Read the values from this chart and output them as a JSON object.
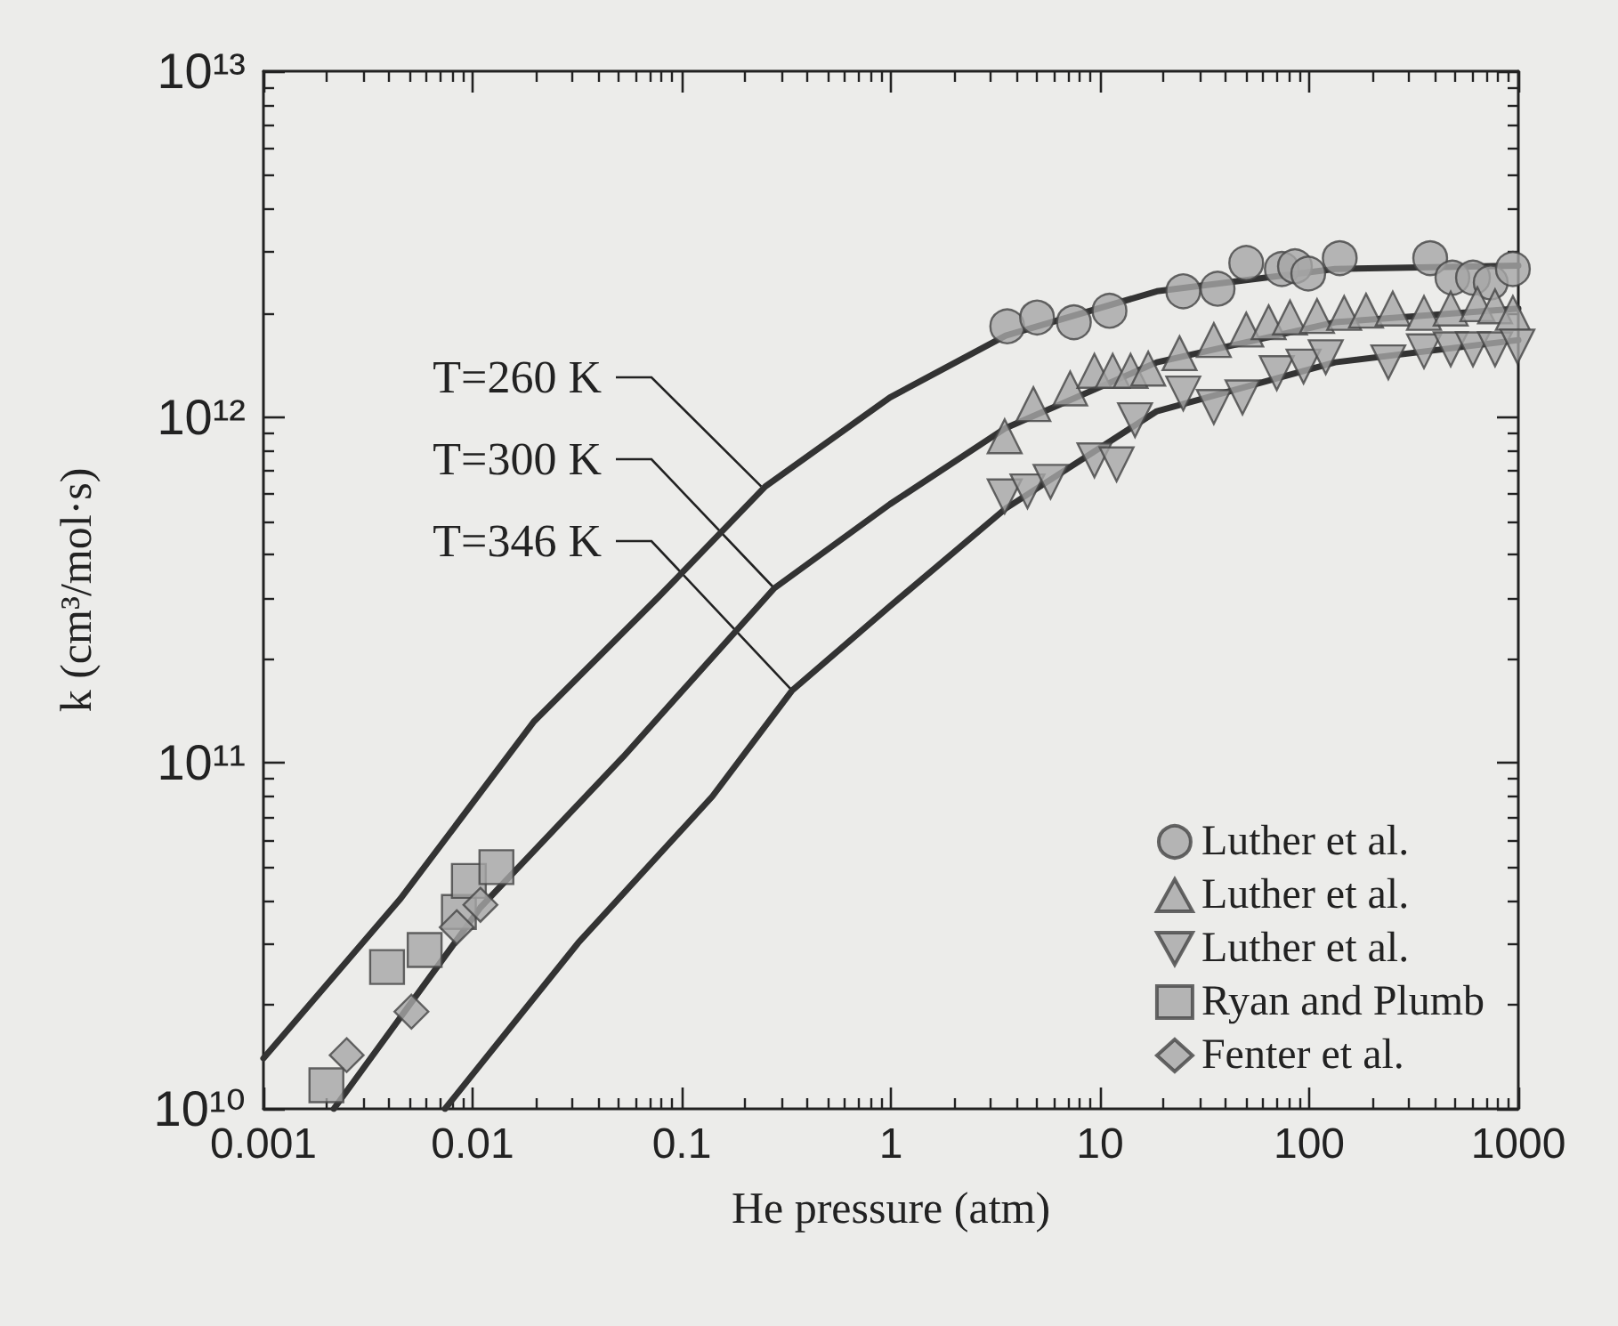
{
  "chart_data": {
    "type": "scatter",
    "xlabel": "He pressure (atm)",
    "ylabel": "k (cm³/mol·s)",
    "log": "xy",
    "xlim": [
      0.001,
      1000
    ],
    "xticks": [
      0.001,
      0.01,
      0.1,
      1,
      10,
      100,
      1000
    ],
    "ylim": [
      10000000000.0,
      10000000000000.0
    ],
    "yticks": [
      {
        "value": 10000000000.0,
        "label": "10¹⁰"
      },
      {
        "value": 100000000000.0,
        "label": "10¹¹"
      },
      {
        "value": 1000000000000.0,
        "label": "10¹²"
      },
      {
        "value": 10000000000000.0,
        "label": "10¹³"
      }
    ],
    "legend": "bottom right",
    "grid": false,
    "series": [
      {
        "name": "Luther et al.",
        "marker": "circle",
        "color": "#a6a6a6",
        "x": [
          3.6,
          5.0,
          7.5,
          11.1,
          25,
          36.5,
          50,
          74,
          85.5,
          99,
          140,
          379,
          484,
          607,
          738,
          942
        ],
        "values": [
          1830000000000.0,
          1940000000000.0,
          1880000000000.0,
          2030000000000.0,
          2310000000000.0,
          2350000000000.0,
          2790000000000.0,
          2680000000000.0,
          2730000000000.0,
          2600000000000.0,
          2880000000000.0,
          2880000000000.0,
          2530000000000.0,
          2530000000000.0,
          2450000000000.0,
          2680000000000.0
        ]
      },
      {
        "name": "Luther et al.",
        "marker": "triangle",
        "color": "#a6a6a6",
        "x": [
          3.5,
          4.8,
          7.2,
          9.4,
          11.5,
          14,
          17,
          24,
          35,
          50,
          64,
          81,
          109,
          147,
          187,
          251,
          354,
          475,
          637,
          774,
          942
        ],
        "values": [
          880000000000.0,
          1090000000000.0,
          1210000000000.0,
          1360000000000.0,
          1360000000000.0,
          1360000000000.0,
          1380000000000.0,
          1530000000000.0,
          1670000000000.0,
          1790000000000.0,
          1880000000000.0,
          1940000000000.0,
          1960000000000.0,
          2000000000000.0,
          2030000000000.0,
          2060000000000.0,
          2000000000000.0,
          2060000000000.0,
          2120000000000.0,
          2090000000000.0,
          2000000000000.0
        ]
      },
      {
        "name": "Luther et al.",
        "marker": "triangle-down",
        "color": "#a6a6a6",
        "x": [
          3.5,
          4.5,
          5.8,
          9.4,
          12,
          14.7,
          25,
          35,
          48,
          70,
          94,
          120,
          239,
          354,
          475,
          607,
          774,
          990
        ],
        "values": [
          590000000000.0,
          610000000000.0,
          650000000000.0,
          750000000000.0,
          730000000000.0,
          980000000000.0,
          1170000000000.0,
          1070000000000.0,
          1140000000000.0,
          1340000000000.0,
          1400000000000.0,
          1490000000000.0,
          1440000000000.0,
          1550000000000.0,
          1570000000000.0,
          1570000000000.0,
          1570000000000.0,
          1600000000000.0
        ]
      },
      {
        "name": "Ryan and Plumb",
        "marker": "square",
        "color": "#a6a6a6",
        "x": [
          0.002,
          0.0039,
          0.0059,
          0.0086,
          0.0096,
          0.013
        ],
        "values": [
          11700000000.0,
          25700000000.0,
          28800000000.0,
          37100000000.0,
          45600000000.0,
          50000000000.0
        ]
      },
      {
        "name": "Fenter et al.",
        "marker": "diamond",
        "color": "#a6a6a6",
        "x": [
          0.0025,
          0.0051,
          0.0084,
          0.0109
        ],
        "values": [
          14300000000.0,
          19100000000.0,
          33500000000.0,
          38900000000.0
        ]
      },
      {
        "type": "line",
        "marker": "none",
        "color": "#333333",
        "x": [
          0.001,
          0.00452,
          0.0197,
          0.0775,
          0.251,
          0.99,
          3.54,
          18.7,
          133,
          1000
        ],
        "values": [
          14000000000.0,
          40500000000.0,
          132000000000.0,
          302000000000.0,
          630000000000.0,
          1140000000000.0,
          1720000000000.0,
          2310000000000.0,
          2680000000000.0,
          2740000000000.0
        ]
      },
      {
        "type": "line",
        "marker": "none",
        "color": "#333333",
        "x": [
          0.00217,
          0.0109,
          0.0524,
          0.277,
          0.99,
          3.54,
          18.7,
          133,
          1000
        ],
        "values": [
          10000000000.0,
          38200000000.0,
          104000000000.0,
          320000000000.0,
          560000000000.0,
          930000000000.0,
          1440000000000.0,
          1880000000000.0,
          2060000000000.0
        ]
      },
      {
        "type": "line",
        "marker": "none",
        "color": "#333333",
        "x": [
          0.00738,
          0.032,
          0.14,
          0.337,
          0.99,
          3.54,
          18.7,
          133,
          1000
        ],
        "values": [
          10000000000.0,
          30200000000.0,
          80000000000.0,
          162000000000.0,
          284000000000.0,
          544000000000.0,
          1040000000000.0,
          1440000000000.0,
          1670000000000.0
        ]
      }
    ],
    "annotations": [
      {
        "text": "T=260 K",
        "x": 0.24,
        "y": 630000000000.0
      },
      {
        "text": "T=300 K",
        "x": 0.277,
        "y": 320000000000.0
      },
      {
        "text": "T=346 K",
        "x": 0.337,
        "y": 162000000000.0
      }
    ]
  }
}
